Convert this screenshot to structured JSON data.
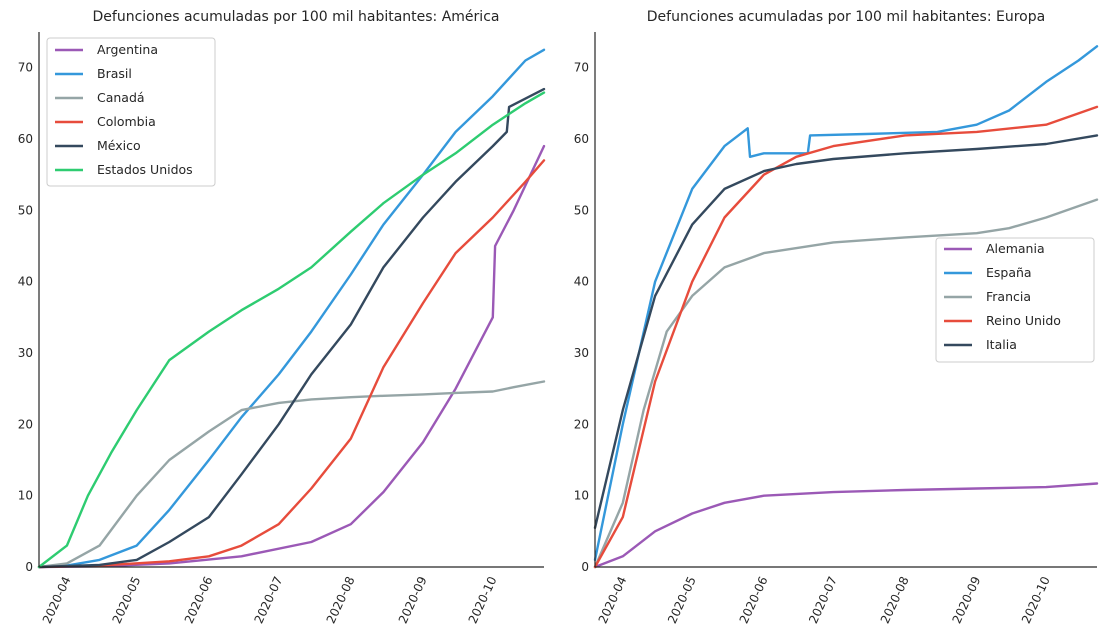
{
  "chart_data": [
    {
      "type": "line",
      "title": "Defunciones acumuladas por 100 mil habitantes: América",
      "x_tick_labels": [
        "2020-04",
        "2020-05",
        "2020-06",
        "2020-07",
        "2020-08",
        "2020-09",
        "2020-10"
      ],
      "y_tick_labels": [
        "0",
        "10",
        "20",
        "30",
        "40",
        "50",
        "60",
        "70"
      ],
      "xlim": [
        "2020-03-20",
        "2020-10-23"
      ],
      "ylim": [
        0,
        75
      ],
      "legend_position": "upper-left",
      "grid": false,
      "series": [
        {
          "name": "Argentina",
          "color": "#9b59b6",
          "points": [
            [
              "2020-03-20",
              0
            ],
            [
              "2020-04-15",
              0.1
            ],
            [
              "2020-05-15",
              0.5
            ],
            [
              "2020-06-15",
              1.5
            ],
            [
              "2020-07-15",
              3.5
            ],
            [
              "2020-08-01",
              6
            ],
            [
              "2020-08-15",
              10.5
            ],
            [
              "2020-09-01",
              17.5
            ],
            [
              "2020-09-15",
              25
            ],
            [
              "2020-10-01",
              35
            ],
            [
              "2020-10-02",
              45
            ],
            [
              "2020-10-10",
              50
            ],
            [
              "2020-10-23",
              59
            ]
          ]
        },
        {
          "name": "Brasil",
          "color": "#3498db",
          "points": [
            [
              "2020-03-20",
              0
            ],
            [
              "2020-04-01",
              0.2
            ],
            [
              "2020-04-15",
              1
            ],
            [
              "2020-05-01",
              3
            ],
            [
              "2020-05-15",
              8
            ],
            [
              "2020-06-01",
              15
            ],
            [
              "2020-06-15",
              21
            ],
            [
              "2020-07-01",
              27
            ],
            [
              "2020-07-15",
              33
            ],
            [
              "2020-08-01",
              41
            ],
            [
              "2020-08-15",
              48
            ],
            [
              "2020-09-01",
              55
            ],
            [
              "2020-09-15",
              61
            ],
            [
              "2020-10-01",
              66
            ],
            [
              "2020-10-15",
              71
            ],
            [
              "2020-10-23",
              72.5
            ]
          ]
        },
        {
          "name": "Canadá",
          "color": "#95a5a6",
          "points": [
            [
              "2020-03-20",
              0
            ],
            [
              "2020-04-01",
              0.5
            ],
            [
              "2020-04-15",
              3
            ],
            [
              "2020-05-01",
              10
            ],
            [
              "2020-05-15",
              15
            ],
            [
              "2020-06-01",
              19
            ],
            [
              "2020-06-15",
              22
            ],
            [
              "2020-07-01",
              23
            ],
            [
              "2020-07-15",
              23.5
            ],
            [
              "2020-08-01",
              23.8
            ],
            [
              "2020-08-15",
              24
            ],
            [
              "2020-09-01",
              24.2
            ],
            [
              "2020-09-15",
              24.4
            ],
            [
              "2020-10-01",
              24.6
            ],
            [
              "2020-10-10",
              25.2
            ],
            [
              "2020-10-23",
              26
            ]
          ]
        },
        {
          "name": "Colombia",
          "color": "#e74c3c",
          "points": [
            [
              "2020-03-20",
              0
            ],
            [
              "2020-04-15",
              0.2
            ],
            [
              "2020-05-15",
              0.8
            ],
            [
              "2020-06-01",
              1.5
            ],
            [
              "2020-06-15",
              3
            ],
            [
              "2020-07-01",
              6
            ],
            [
              "2020-07-15",
              11
            ],
            [
              "2020-08-01",
              18
            ],
            [
              "2020-08-15",
              28
            ],
            [
              "2020-09-01",
              37
            ],
            [
              "2020-09-15",
              44
            ],
            [
              "2020-10-01",
              49
            ],
            [
              "2020-10-15",
              54
            ],
            [
              "2020-10-23",
              57
            ]
          ]
        },
        {
          "name": "México",
          "color": "#34495e",
          "points": [
            [
              "2020-03-20",
              0
            ],
            [
              "2020-04-15",
              0.3
            ],
            [
              "2020-05-01",
              1
            ],
            [
              "2020-05-15",
              3.5
            ],
            [
              "2020-06-01",
              7
            ],
            [
              "2020-06-15",
              13
            ],
            [
              "2020-07-01",
              20
            ],
            [
              "2020-07-15",
              27
            ],
            [
              "2020-08-01",
              34
            ],
            [
              "2020-08-15",
              42
            ],
            [
              "2020-09-01",
              49
            ],
            [
              "2020-09-15",
              54
            ],
            [
              "2020-10-01",
              59
            ],
            [
              "2020-10-07",
              61
            ],
            [
              "2020-10-08",
              64.5
            ],
            [
              "2020-10-23",
              67
            ]
          ]
        },
        {
          "name": "Estados Unidos",
          "color": "#2ecc71",
          "points": [
            [
              "2020-03-20",
              0
            ],
            [
              "2020-04-01",
              3
            ],
            [
              "2020-04-10",
              10
            ],
            [
              "2020-04-20",
              16
            ],
            [
              "2020-05-01",
              22
            ],
            [
              "2020-05-15",
              29
            ],
            [
              "2020-06-01",
              33
            ],
            [
              "2020-06-15",
              36
            ],
            [
              "2020-07-01",
              39
            ],
            [
              "2020-07-15",
              42
            ],
            [
              "2020-08-01",
              47
            ],
            [
              "2020-08-15",
              51
            ],
            [
              "2020-09-01",
              55
            ],
            [
              "2020-09-15",
              58
            ],
            [
              "2020-10-01",
              62
            ],
            [
              "2020-10-15",
              65
            ],
            [
              "2020-10-23",
              66.5
            ]
          ]
        }
      ]
    },
    {
      "type": "line",
      "title": "Defunciones acumuladas por 100 mil habitantes: Europa",
      "x_tick_labels": [
        "2020-04",
        "2020-05",
        "2020-06",
        "2020-07",
        "2020-08",
        "2020-09",
        "2020-10"
      ],
      "y_tick_labels": [
        "0",
        "10",
        "20",
        "30",
        "40",
        "50",
        "60",
        "70"
      ],
      "xlim": [
        "2020-03-20",
        "2020-10-23"
      ],
      "ylim": [
        0,
        75
      ],
      "legend_position": "center-right",
      "grid": false,
      "series": [
        {
          "name": "Alemania",
          "color": "#9b59b6",
          "points": [
            [
              "2020-03-20",
              0
            ],
            [
              "2020-04-01",
              1.5
            ],
            [
              "2020-04-15",
              5
            ],
            [
              "2020-05-01",
              7.5
            ],
            [
              "2020-05-15",
              9
            ],
            [
              "2020-06-01",
              10
            ],
            [
              "2020-07-01",
              10.5
            ],
            [
              "2020-08-01",
              10.8
            ],
            [
              "2020-09-01",
              11
            ],
            [
              "2020-10-01",
              11.2
            ],
            [
              "2020-10-23",
              11.7
            ]
          ]
        },
        {
          "name": "España",
          "color": "#3498db",
          "points": [
            [
              "2020-03-20",
              1
            ],
            [
              "2020-04-01",
              20
            ],
            [
              "2020-04-15",
              40
            ],
            [
              "2020-05-01",
              53
            ],
            [
              "2020-05-15",
              59
            ],
            [
              "2020-05-25",
              61.5
            ],
            [
              "2020-05-26",
              57.5
            ],
            [
              "2020-06-01",
              58
            ],
            [
              "2020-06-20",
              58
            ],
            [
              "2020-06-21",
              60.5
            ],
            [
              "2020-07-15",
              60.7
            ],
            [
              "2020-08-15",
              61
            ],
            [
              "2020-09-01",
              62
            ],
            [
              "2020-09-15",
              64
            ],
            [
              "2020-10-01",
              68
            ],
            [
              "2020-10-15",
              71
            ],
            [
              "2020-10-23",
              73
            ]
          ]
        },
        {
          "name": "Francia",
          "color": "#95a5a6",
          "points": [
            [
              "2020-03-20",
              0
            ],
            [
              "2020-04-01",
              9
            ],
            [
              "2020-04-10",
              22
            ],
            [
              "2020-04-20",
              33
            ],
            [
              "2020-05-01",
              38
            ],
            [
              "2020-05-15",
              42
            ],
            [
              "2020-06-01",
              44
            ],
            [
              "2020-07-01",
              45.5
            ],
            [
              "2020-08-01",
              46.2
            ],
            [
              "2020-09-01",
              46.8
            ],
            [
              "2020-09-15",
              47.5
            ],
            [
              "2020-10-01",
              49
            ],
            [
              "2020-10-23",
              51.5
            ]
          ]
        },
        {
          "name": "Reino Unido",
          "color": "#e74c3c",
          "points": [
            [
              "2020-03-20",
              0
            ],
            [
              "2020-04-01",
              7
            ],
            [
              "2020-04-15",
              26
            ],
            [
              "2020-05-01",
              40
            ],
            [
              "2020-05-15",
              49
            ],
            [
              "2020-06-01",
              55
            ],
            [
              "2020-06-15",
              57.5
            ],
            [
              "2020-07-01",
              59
            ],
            [
              "2020-08-01",
              60.5
            ],
            [
              "2020-09-01",
              61
            ],
            [
              "2020-10-01",
              62
            ],
            [
              "2020-10-23",
              64.5
            ]
          ]
        },
        {
          "name": "Italia",
          "color": "#34495e",
          "points": [
            [
              "2020-03-20",
              5.5
            ],
            [
              "2020-04-01",
              22
            ],
            [
              "2020-04-15",
              38
            ],
            [
              "2020-05-01",
              48
            ],
            [
              "2020-05-15",
              53
            ],
            [
              "2020-06-01",
              55.5
            ],
            [
              "2020-06-15",
              56.5
            ],
            [
              "2020-07-01",
              57.2
            ],
            [
              "2020-08-01",
              58
            ],
            [
              "2020-09-01",
              58.6
            ],
            [
              "2020-10-01",
              59.3
            ],
            [
              "2020-10-23",
              60.5
            ]
          ]
        }
      ]
    }
  ]
}
